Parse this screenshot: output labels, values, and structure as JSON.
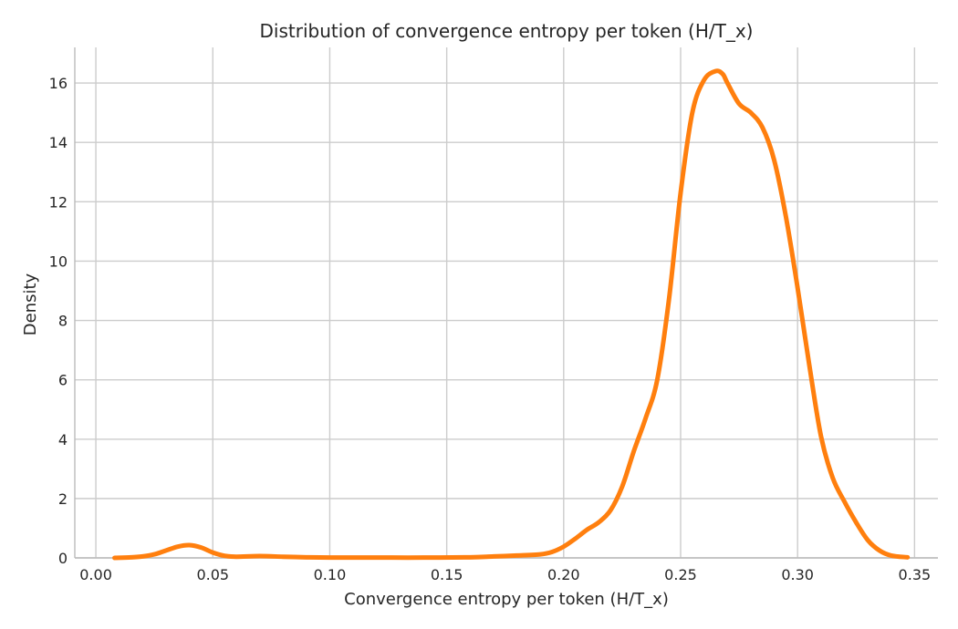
{
  "chart_data": {
    "type": "line",
    "title": "Distribution of convergence entropy per token (H/T_x)",
    "xlabel": "Convergence entropy per token (H/T_x)",
    "ylabel": "Density",
    "xlim": [
      -0.009,
      0.36
    ],
    "ylim": [
      0,
      17.2
    ],
    "xticks": [
      0.0,
      0.05,
      0.1,
      0.15,
      0.2,
      0.25,
      0.3,
      0.35
    ],
    "xtick_labels": [
      "0.00",
      "0.05",
      "0.10",
      "0.15",
      "0.20",
      "0.25",
      "0.30",
      "0.35"
    ],
    "yticks": [
      0,
      2,
      4,
      6,
      8,
      10,
      12,
      14,
      16
    ],
    "ytick_labels": [
      "0",
      "2",
      "4",
      "6",
      "8",
      "10",
      "12",
      "14",
      "16"
    ],
    "grid": true,
    "series": [
      {
        "color": "#ff7f0e",
        "x": [
          0.008,
          0.015,
          0.02,
          0.025,
          0.03,
          0.035,
          0.04,
          0.045,
          0.05,
          0.055,
          0.06,
          0.07,
          0.08,
          0.09,
          0.1,
          0.12,
          0.14,
          0.16,
          0.17,
          0.18,
          0.19,
          0.195,
          0.2,
          0.205,
          0.21,
          0.215,
          0.22,
          0.225,
          0.23,
          0.235,
          0.24,
          0.245,
          0.25,
          0.255,
          0.26,
          0.265,
          0.268,
          0.27,
          0.275,
          0.28,
          0.285,
          0.29,
          0.295,
          0.3,
          0.305,
          0.31,
          0.315,
          0.32,
          0.325,
          0.33,
          0.335,
          0.34,
          0.347
        ],
        "y": [
          0.0,
          0.02,
          0.05,
          0.12,
          0.25,
          0.38,
          0.43,
          0.35,
          0.18,
          0.07,
          0.04,
          0.06,
          0.04,
          0.02,
          0.01,
          0.01,
          0.01,
          0.02,
          0.05,
          0.08,
          0.12,
          0.2,
          0.38,
          0.65,
          0.95,
          1.2,
          1.6,
          2.4,
          3.6,
          4.7,
          6.0,
          8.7,
          12.3,
          15.0,
          16.1,
          16.4,
          16.3,
          16.0,
          15.3,
          15.0,
          14.5,
          13.4,
          11.5,
          9.1,
          6.5,
          4.1,
          2.7,
          1.9,
          1.2,
          0.6,
          0.25,
          0.08,
          0.02
        ]
      }
    ]
  }
}
